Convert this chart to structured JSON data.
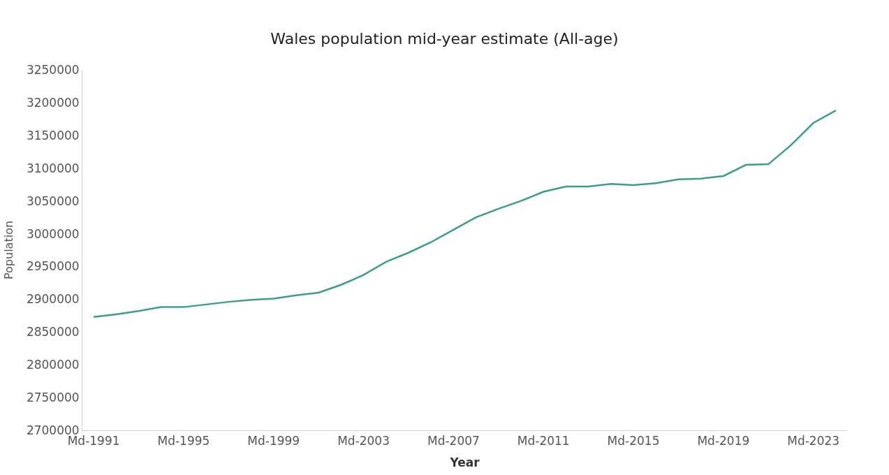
{
  "chart_data": {
    "type": "line",
    "title": "Wales population mid-year estimate (All-age)",
    "xlabel": "Year",
    "ylabel": "Population",
    "categories": [
      "Md-1991",
      null,
      null,
      null,
      "Md-1995",
      null,
      null,
      null,
      "Md-1999",
      null,
      null,
      null,
      "Md-2003",
      null,
      null,
      null,
      "Md-2007",
      null,
      null,
      null,
      "Md-2011",
      null,
      null,
      null,
      "Md-2015",
      null,
      null,
      null,
      "Md-2019",
      null,
      null,
      null,
      "Md-2023",
      null
    ],
    "series": [
      {
        "color": "#3a9e8a",
        "values": [
          2873000,
          2877000,
          2882000,
          2888000,
          2888000,
          2892000,
          2896000,
          2899000,
          2901000,
          2906000,
          2910000,
          2922000,
          2937000,
          2957000,
          2971000,
          2987000,
          3006000,
          3025000,
          3038000,
          3050000,
          3064000,
          3072000,
          3072000,
          3076000,
          3074000,
          3077000,
          3083000,
          3084000,
          3088000,
          3105000,
          3106000,
          3135000,
          3169000,
          3188000
        ]
      }
    ],
    "ylim": [
      2700000,
      3250000
    ],
    "yticks": [
      2700000,
      2750000,
      2800000,
      2850000,
      2900000,
      2950000,
      3000000,
      3050000,
      3100000,
      3150000,
      3200000,
      3250000
    ],
    "marker": "none",
    "line_style": "solid"
  }
}
